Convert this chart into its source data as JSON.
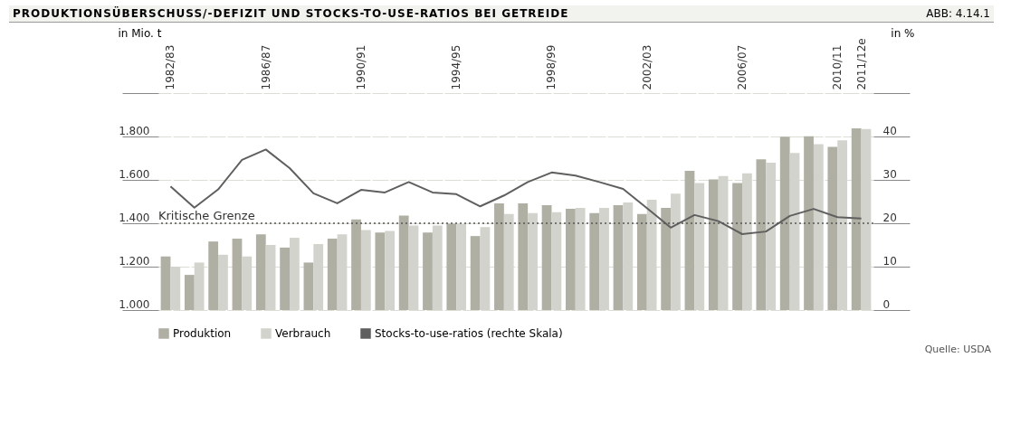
{
  "chart_data": {
    "type": "bar",
    "title": "PRODUKTIONSÜBERSCHUSS/-DEFIZIT UND STOCKS-TO-USE-RATIOS BEI GETREIDE",
    "categories": [
      "1982/83",
      null,
      null,
      null,
      "1986/87",
      null,
      null,
      null,
      "1990/91",
      null,
      null,
      null,
      "1994/95",
      null,
      null,
      null,
      "1998/99",
      null,
      null,
      null,
      "2002/03",
      null,
      null,
      null,
      "2006/07",
      null,
      null,
      null,
      "2010/11",
      "2011/12e"
    ],
    "series": [
      {
        "name": "Produktion",
        "color": "#b0afa3",
        "values": [
          1247,
          1162,
          1316,
          1329,
          1349,
          1288,
          1219,
          1329,
          1418,
          1357,
          1435,
          1357,
          1398,
          1341,
          1492,
          1492,
          1483,
          1467,
          1447,
          1483,
          1443,
          1471,
          1642,
          1602,
          1585,
          1695,
          1799,
          1801,
          1752,
          1838
        ]
      },
      {
        "name": "Verbrauch",
        "color": "#d3d3cd",
        "values": [
          1200,
          1219,
          1255,
          1247,
          1300,
          1333,
          1304,
          1349,
          1369,
          1365,
          1390,
          1390,
          1398,
          1382,
          1443,
          1447,
          1451,
          1471,
          1471,
          1496,
          1508,
          1536,
          1585,
          1618,
          1630,
          1679,
          1724,
          1765,
          1782,
          1834
        ]
      },
      {
        "name": "Stocks-to-use-ratios (rechte Skala)",
        "color": "#5f5f5f",
        "type": "line",
        "axis": "y2",
        "values": [
          28.5,
          23.6,
          27.8,
          34.6,
          37.0,
          32.7,
          26.9,
          24.6,
          27.7,
          27.1,
          29.5,
          27.1,
          26.7,
          23.9,
          26.4,
          29.5,
          31.7,
          31.0,
          29.5,
          27.9,
          23.5,
          19.0,
          21.9,
          20.5,
          17.5,
          18.1,
          21.7,
          23.3,
          21.4,
          21.1
        ]
      }
    ],
    "ylabel": "in Mio. t",
    "y2label": "in %",
    "ylim": [
      1000,
      2000
    ],
    "yticks": [
      {
        "value": 1000,
        "label": "1.000"
      },
      {
        "value": 1200,
        "label": "1.200"
      },
      {
        "value": 1400,
        "label": "1.400"
      },
      {
        "value": 1600,
        "label": "1.600"
      },
      {
        "value": 1800,
        "label": "1.800"
      },
      {
        "value": 2000,
        "label": null
      }
    ],
    "y2lim": [
      0,
      50
    ],
    "y2ticks": [
      0,
      10,
      20,
      30,
      40,
      {
        "value": 50,
        "label": null
      }
    ],
    "ref_lines": [
      {
        "axis": "y2",
        "value": 20,
        "label": "Kritische Grenze",
        "color": "#555555",
        "line_style": "dotted"
      }
    ],
    "grid": "y",
    "legend": "bottom",
    "annotations": [
      "ABB: 4.14.1",
      "Quelle: USDA"
    ]
  }
}
